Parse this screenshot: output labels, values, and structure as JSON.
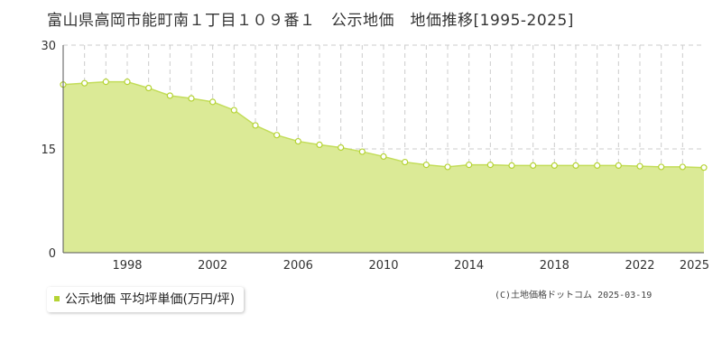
{
  "title": "富山県高岡市能町南１丁目１０９番１　公示地価　地価推移[1995-2025]",
  "legend": {
    "label": "公示地価 平均坪単価(万円/坪)"
  },
  "copyright": "(C)土地価格ドットコム 2025-03-19",
  "colors": {
    "fill": "#dbea96",
    "line": "#c3dd5a",
    "marker": "#b5d334",
    "grid": "#cccccc"
  },
  "chart_data": {
    "type": "area",
    "title": "富山県高岡市能町南１丁目１０９番１　公示地価　地価推移[1995-2025]",
    "xlabel": "",
    "ylabel": "",
    "ylim": [
      0,
      30
    ],
    "yticks": [
      "0",
      "15",
      "30"
    ],
    "xlim": [
      1995,
      2025
    ],
    "xticks": [
      "1998",
      "2002",
      "2006",
      "2010",
      "2014",
      "2018",
      "2022",
      "2025"
    ],
    "grid": true,
    "legend_position": "bottom-left",
    "series": [
      {
        "name": "公示地価 平均坪単価(万円/坪)",
        "x": [
          1995,
          1996,
          1997,
          1998,
          1999,
          2000,
          2001,
          2002,
          2003,
          2004,
          2005,
          2006,
          2007,
          2008,
          2009,
          2010,
          2011,
          2012,
          2013,
          2014,
          2015,
          2016,
          2017,
          2018,
          2019,
          2020,
          2021,
          2022,
          2023,
          2024,
          2025
        ],
        "values": [
          24.3,
          24.5,
          24.7,
          24.7,
          23.8,
          22.7,
          22.3,
          21.8,
          20.6,
          18.4,
          17.0,
          16.1,
          15.6,
          15.2,
          14.6,
          13.9,
          13.1,
          12.7,
          12.4,
          12.7,
          12.7,
          12.6,
          12.6,
          12.6,
          12.6,
          12.6,
          12.6,
          12.5,
          12.4,
          12.4,
          12.3
        ]
      }
    ]
  }
}
